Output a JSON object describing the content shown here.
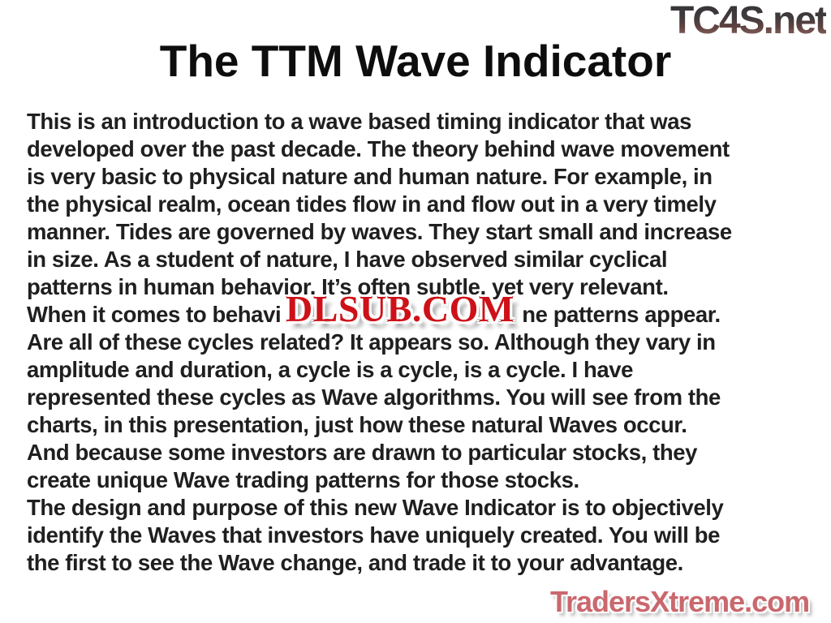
{
  "slide": {
    "title": "The TTM Wave Indicator",
    "body_lines": [
      "This is an introduction to a wave based timing indicator that was",
      "developed over the past decade. The theory behind wave movement",
      "is very basic to physical nature and human nature. For example, in",
      "the physical realm, ocean tides flow in and flow out in a very timely",
      "manner. Tides are governed by waves. They start small and increase",
      "in size. As a student of nature, I have observed similar cyclical",
      "patterns in human behavior. It’s often subtle, yet very relevant.",
      {
        "before": "When it comes to behavi",
        "after": "ne patterns appear."
      },
      "Are all of these cycles related? It appears so. Although they vary in",
      "amplitude and duration, a cycle is a cycle, is a cycle. I have",
      "represented these cycles as Wave algorithms. You will see from the",
      "charts, in this presentation, just how these natural Waves occur.",
      "And because some investors are drawn to particular stocks, they",
      "create unique Wave trading patterns for those stocks.",
      "The design and purpose of this new Wave Indicator is to objectively",
      "identify the Waves that investors have uniquely created. You will be",
      "the first to see the Wave change, and trade it to your advantage."
    ]
  },
  "watermarks": {
    "top_right": "TC4S.net",
    "center": "DLSUB.COM",
    "bottom_right": "TradersXtreme.com"
  },
  "colors": {
    "body_text": "#1f1f1f",
    "dlsub_red": "#ce1118",
    "dlsub_outline": "#8d0b10",
    "tradersxtreme_fill": "#ca686e",
    "tradersxtreme_outline": "#5c1d20",
    "tc4s_gradient_top": "#353338",
    "tc4s_gradient_bottom": "#9e7d76"
  }
}
